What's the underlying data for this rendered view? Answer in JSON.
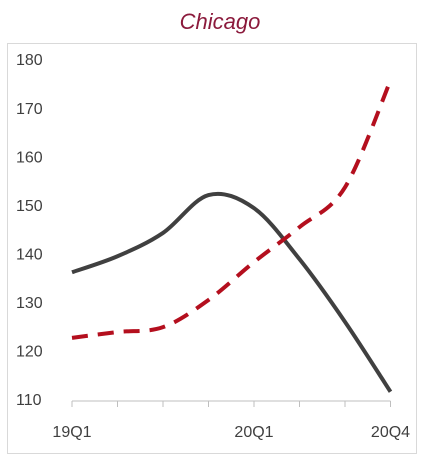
{
  "chart_data": {
    "type": "line",
    "title": "Chicago",
    "categories": [
      "19Q1",
      null,
      null,
      null,
      "20Q1",
      null,
      null,
      "20Q4"
    ],
    "series": [
      {
        "color": "#404040",
        "dashed": false,
        "values": [
          136.5,
          139.8,
          144.6,
          152.4,
          149.7,
          139.2,
          126.3,
          111.9
        ]
      },
      {
        "color": "#b40f1e",
        "dashed": true,
        "values": [
          123,
          124.2,
          125.2,
          130.8,
          138.6,
          145.8,
          154,
          176
        ]
      }
    ],
    "ylim": [
      110,
      180
    ],
    "yticks": [
      110,
      120,
      130,
      140,
      150,
      160,
      170,
      180
    ],
    "grid": false
  }
}
